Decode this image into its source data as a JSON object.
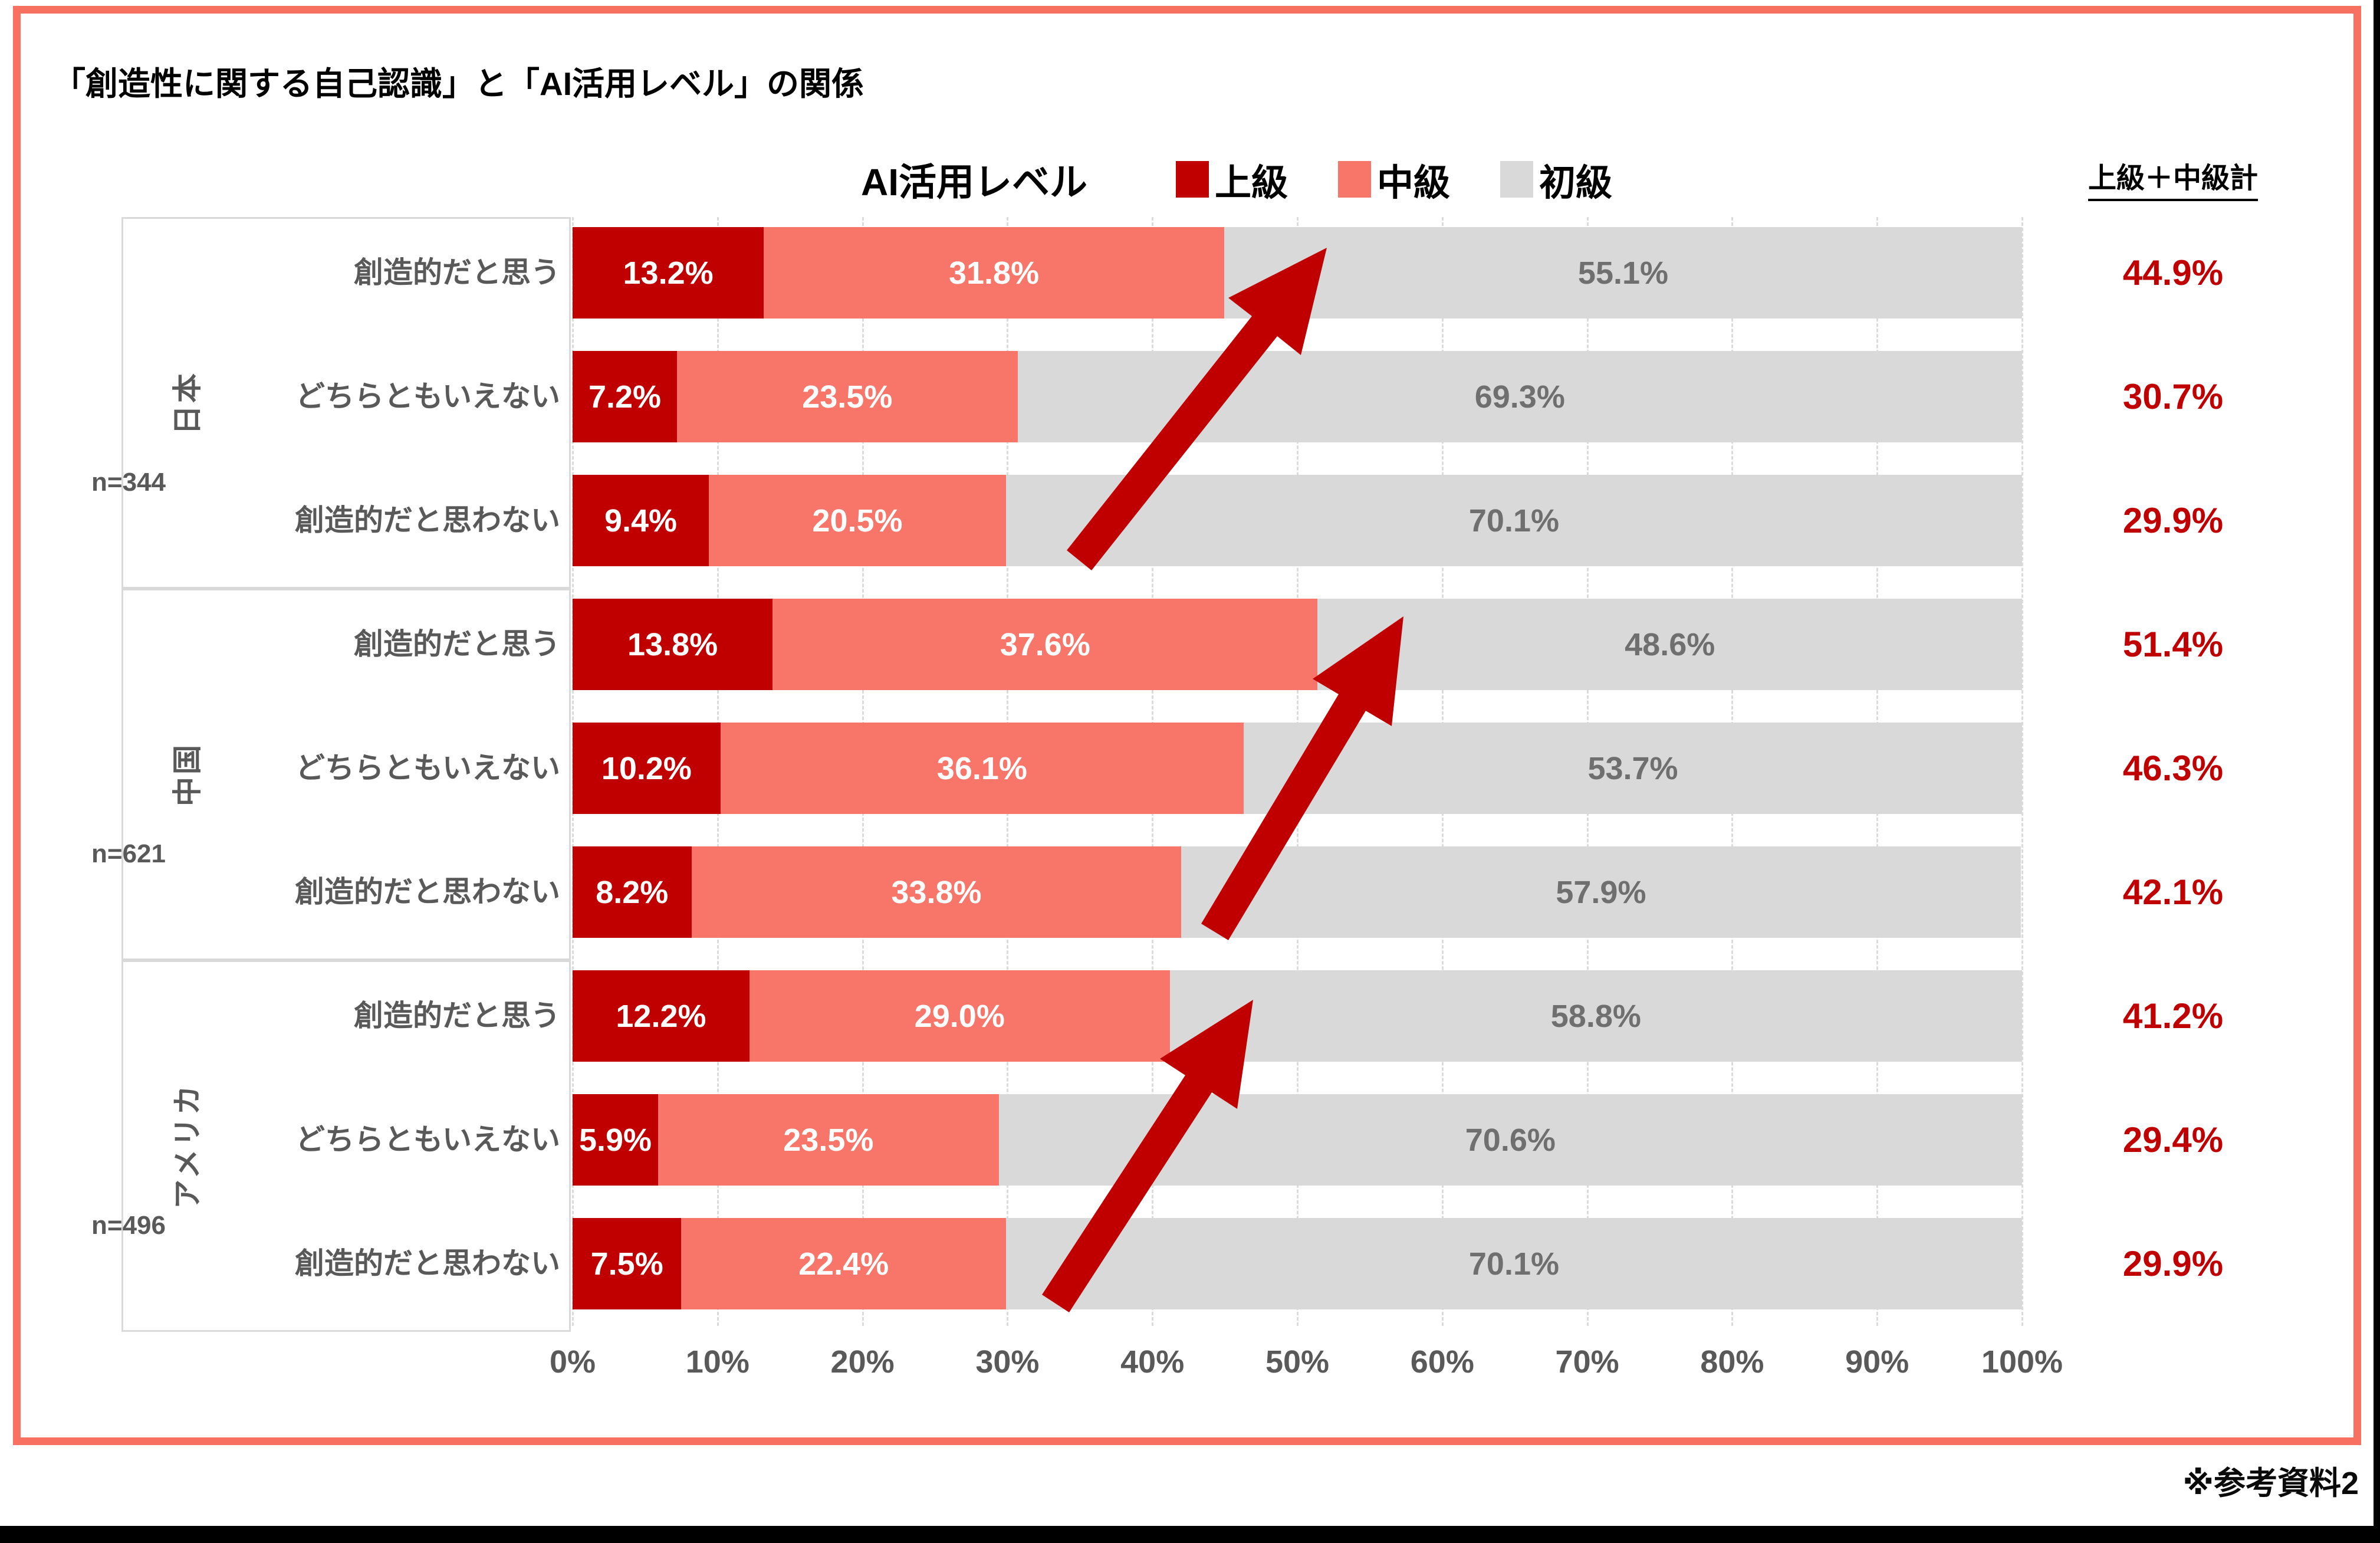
{
  "title": "「創造性に関する自己認識」と「AI活用レベル」の関係",
  "footnote": "※参考資料2",
  "legend": {
    "axis_title": "AI活用レベル",
    "items": [
      {
        "label": "上級",
        "color": "#C00000"
      },
      {
        "label": "中級",
        "color": "#F87569"
      },
      {
        "label": "初級",
        "color": "#D9D9D9"
      }
    ]
  },
  "totals_header": "上級＋中級計",
  "x_axis": {
    "ticks": [
      "0%",
      "10%",
      "20%",
      "30%",
      "40%",
      "50%",
      "60%",
      "70%",
      "80%",
      "90%",
      "100%"
    ]
  },
  "chart_data": {
    "type": "bar",
    "orientation": "horizontal",
    "stacked": true,
    "title": "「創造性に関する自己認識」と「AI活用レベル」の関係",
    "xlabel": "",
    "ylabel": "",
    "xlim": [
      0,
      100
    ],
    "x_unit": "%",
    "grid": "vertical dashed every 10%",
    "legend_position": "top",
    "series_names": [
      "上級",
      "中級",
      "初級"
    ],
    "groups": [
      {
        "country": "日本",
        "n_label": "n=344",
        "rows": [
          {
            "label": "創造的だと思う",
            "values": [
              13.2,
              31.8,
              55.1
            ],
            "total": 44.9
          },
          {
            "label": "どちらともいえない",
            "values": [
              7.2,
              23.5,
              69.3
            ],
            "total": 30.7
          },
          {
            "label": "創造的だと思わない",
            "values": [
              9.4,
              20.5,
              70.1
            ],
            "total": 29.9
          }
        ]
      },
      {
        "country": "中国",
        "n_label": "n=621",
        "rows": [
          {
            "label": "創造的だと思う",
            "values": [
              13.8,
              37.6,
              48.6
            ],
            "total": 51.4
          },
          {
            "label": "どちらともいえない",
            "values": [
              10.2,
              36.1,
              53.7
            ],
            "total": 46.3
          },
          {
            "label": "創造的だと思わない",
            "values": [
              8.2,
              33.8,
              57.9
            ],
            "total": 42.1
          }
        ]
      },
      {
        "country": "アメリカ",
        "n_label": "n=496",
        "rows": [
          {
            "label": "創造的だと思う",
            "values": [
              12.2,
              29.0,
              58.8
            ],
            "total": 41.2
          },
          {
            "label": "どちらともいえない",
            "values": [
              5.9,
              23.5,
              70.6
            ],
            "total": 29.4
          },
          {
            "label": "創造的だと思わない",
            "values": [
              7.5,
              22.4,
              70.1
            ],
            "total": 29.9
          }
        ]
      }
    ]
  },
  "styles": {
    "accent_red": "#C00000",
    "salmon": "#F87569",
    "bar_gray": "#D9D9D9",
    "text_gray": "#595959",
    "frame_border": "#F8705F",
    "arrow_color": "#C00000"
  }
}
